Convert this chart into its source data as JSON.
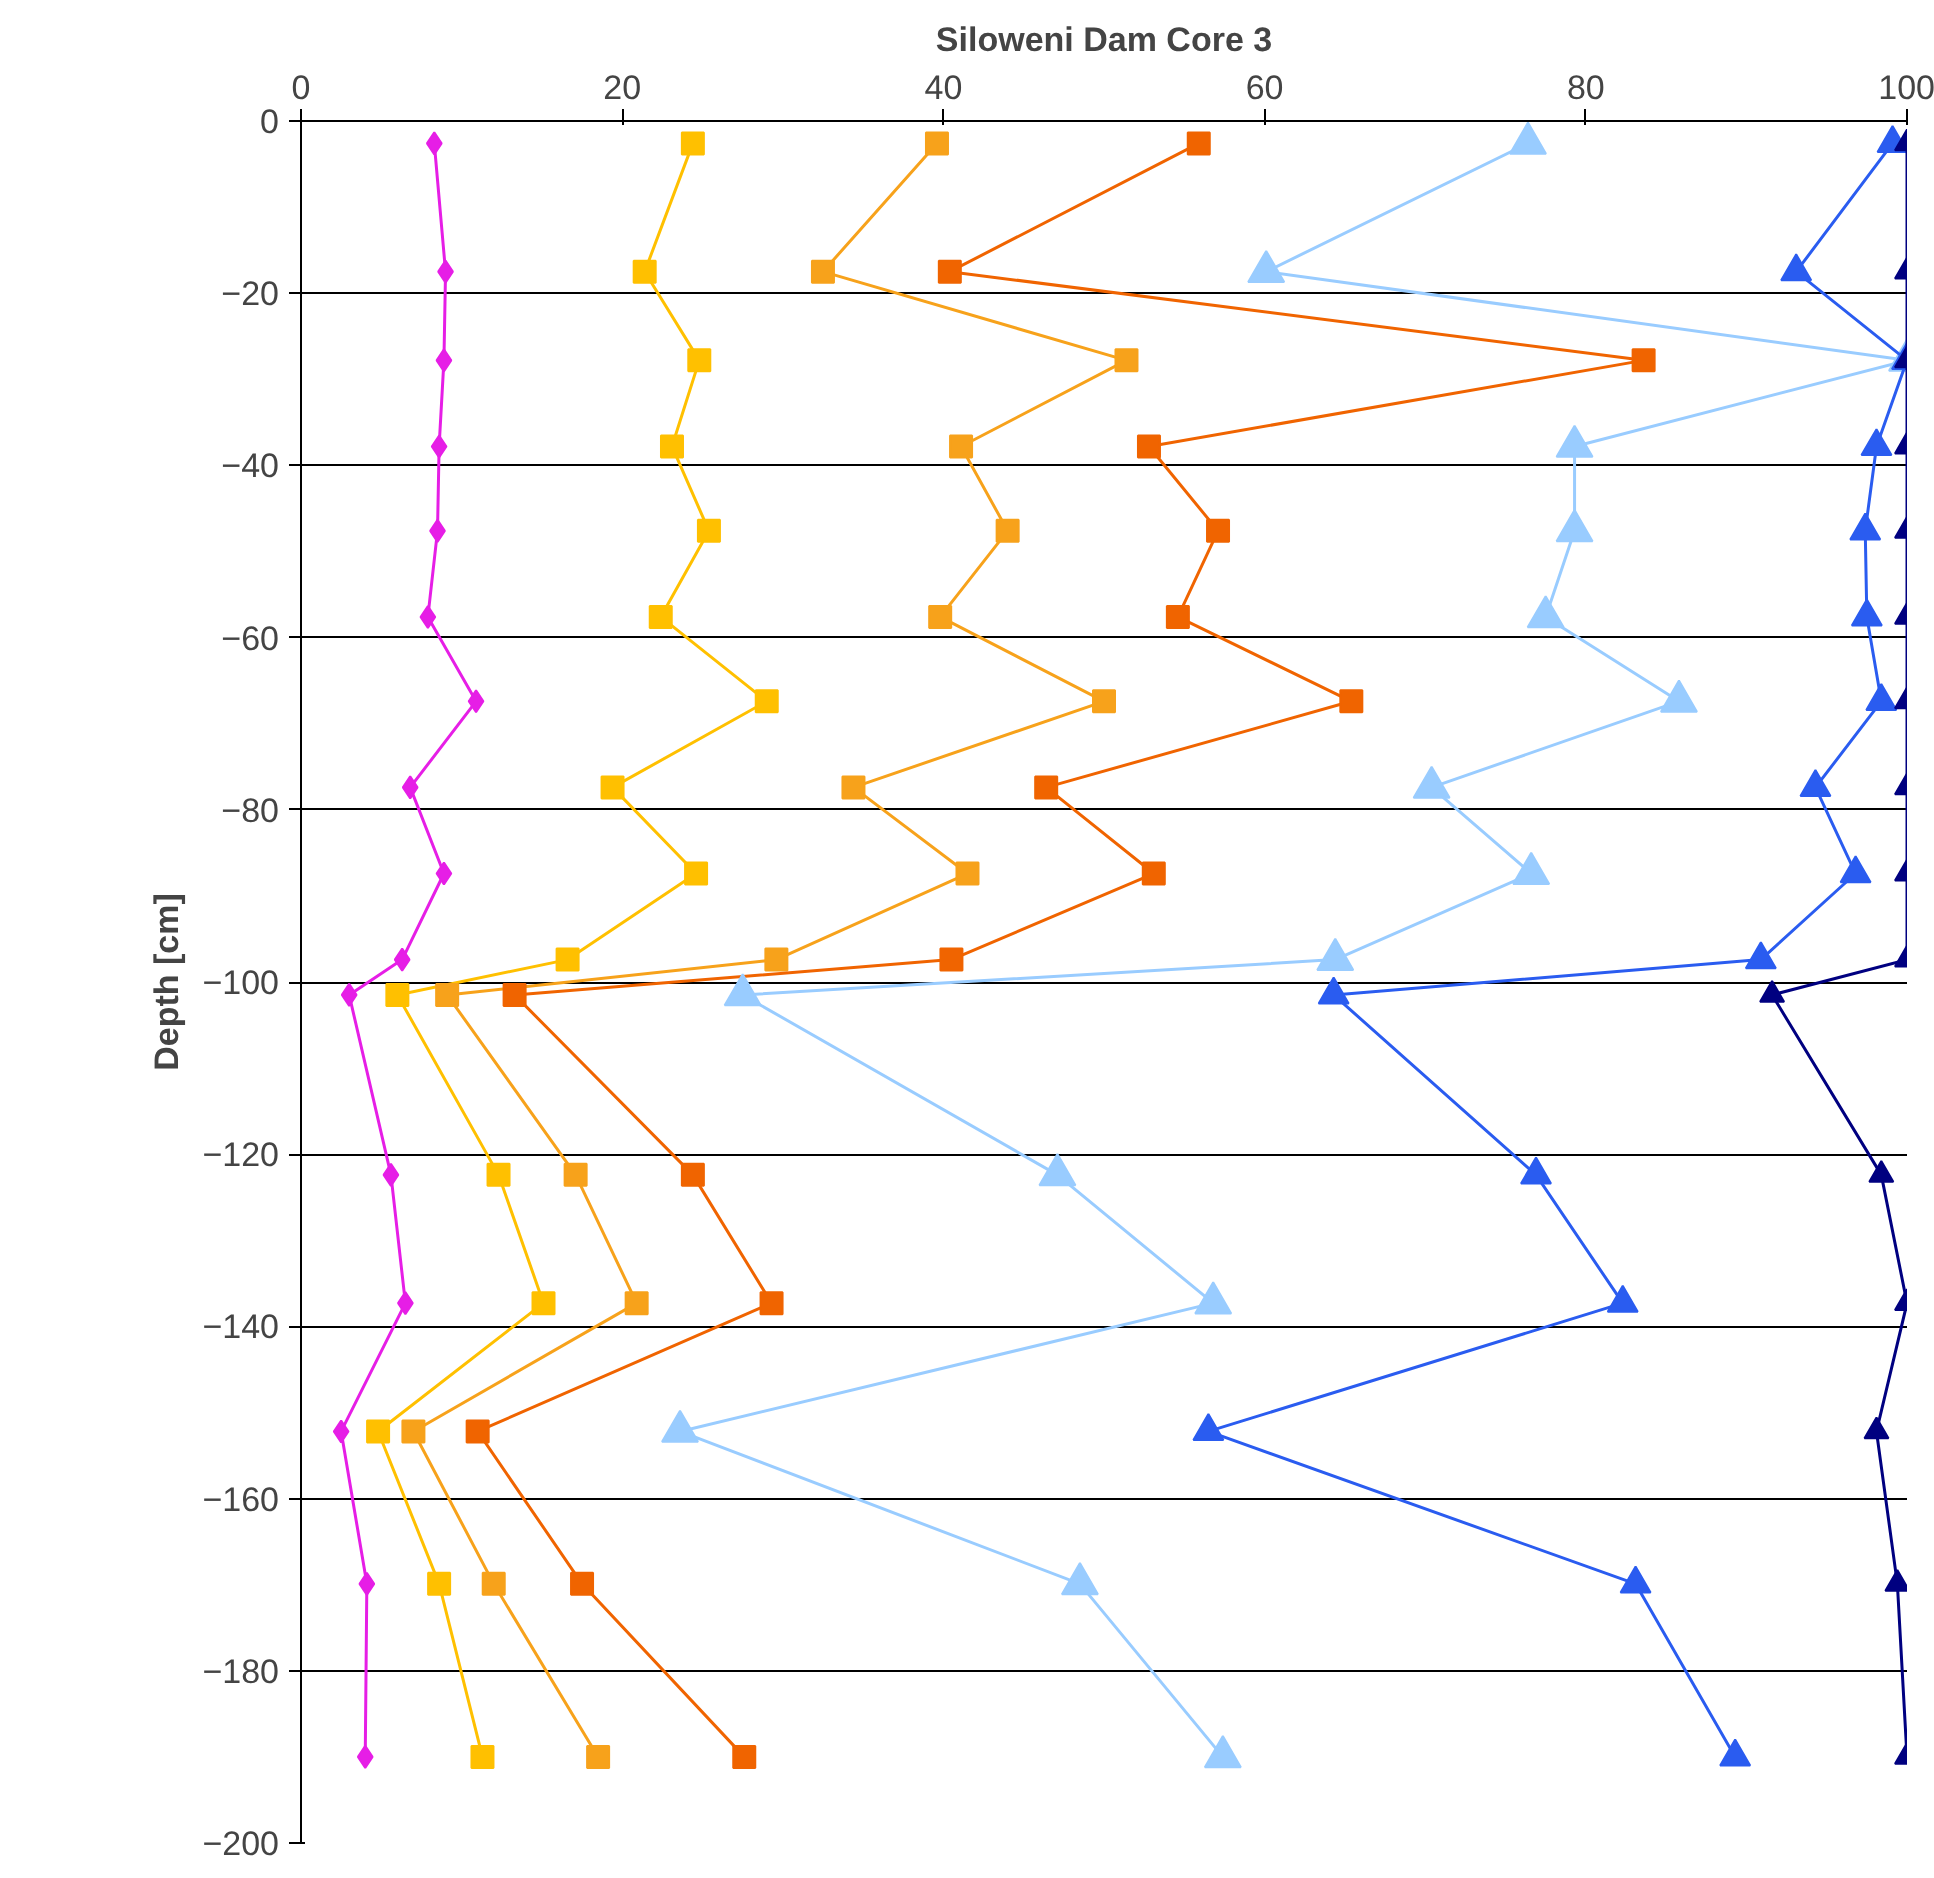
{
  "chart_data": {
    "type": "line",
    "title": "Siloweni Dam Core 3",
    "ylabel": "Depth [cm]",
    "orientation": "horizontal",
    "x": [
      -2.6,
      -17.5,
      -27.8,
      -37.8,
      -47.6,
      -57.6,
      -67.4,
      -77.4,
      -87.4,
      -97.4,
      -101.5,
      -122.4,
      -137.3,
      -152.2,
      -169.9,
      -190
    ],
    "xlim": [
      0,
      100
    ],
    "xticks": [
      0,
      20,
      40,
      60,
      80,
      100
    ],
    "ylim": [
      -200,
      0
    ],
    "yticks": [
      -200,
      -180,
      -160,
      -140,
      -120,
      -100,
      -80,
      -60,
      -40,
      -20,
      0
    ],
    "grid": "y",
    "line_style": "solid",
    "series": [
      {
        "color": "#e61ee6",
        "marker": "diamond",
        "values": [
          8.3,
          9.0,
          8.9,
          8.6,
          8.5,
          7.9,
          10.9,
          6.8,
          8.9,
          6.3,
          3.0,
          5.6,
          6.5,
          2.5,
          4.1,
          4.0
        ]
      },
      {
        "color": "#ffc000",
        "marker": "square",
        "values": [
          24.4,
          21.4,
          24.8,
          23.1,
          25.4,
          22.4,
          29.0,
          19.4,
          24.6,
          16.6,
          6.0,
          12.3,
          15.1,
          4.8,
          8.6,
          11.3
        ]
      },
      {
        "color": "#f7a21b",
        "marker": "square",
        "values": [
          39.6,
          32.5,
          51.4,
          41.1,
          44.0,
          39.8,
          50.0,
          34.4,
          41.5,
          29.6,
          9.1,
          17.1,
          20.9,
          7.0,
          12.0,
          18.5
        ]
      },
      {
        "color": "#f06400",
        "marker": "square",
        "values": [
          55.9,
          40.4,
          83.6,
          52.8,
          57.1,
          54.6,
          65.4,
          46.4,
          53.1,
          40.5,
          13.3,
          24.4,
          29.3,
          11.0,
          17.5,
          27.6
        ]
      },
      {
        "color": "#99ccff",
        "marker": "triangle",
        "values": [
          76.4,
          60.1,
          100,
          79.3,
          79.3,
          77.5,
          85.8,
          70.4,
          76.6,
          64.4,
          27.5,
          47.1,
          56.8,
          23.6,
          48.5,
          57.4
        ]
      },
      {
        "color": "#2a5cf0",
        "marker": "triangle",
        "values": [
          99.1,
          93.1,
          100,
          98.1,
          97.4,
          97.5,
          98.4,
          94.3,
          96.8,
          90.9,
          64.3,
          76.9,
          82.3,
          56.5,
          83.1,
          89.3
        ]
      },
      {
        "color": "#000080",
        "marker": "triangle",
        "values": [
          100,
          100,
          100,
          100,
          100,
          100,
          100,
          100,
          100,
          100,
          91.6,
          98.4,
          100,
          98.1,
          99.4,
          100
        ]
      }
    ]
  }
}
